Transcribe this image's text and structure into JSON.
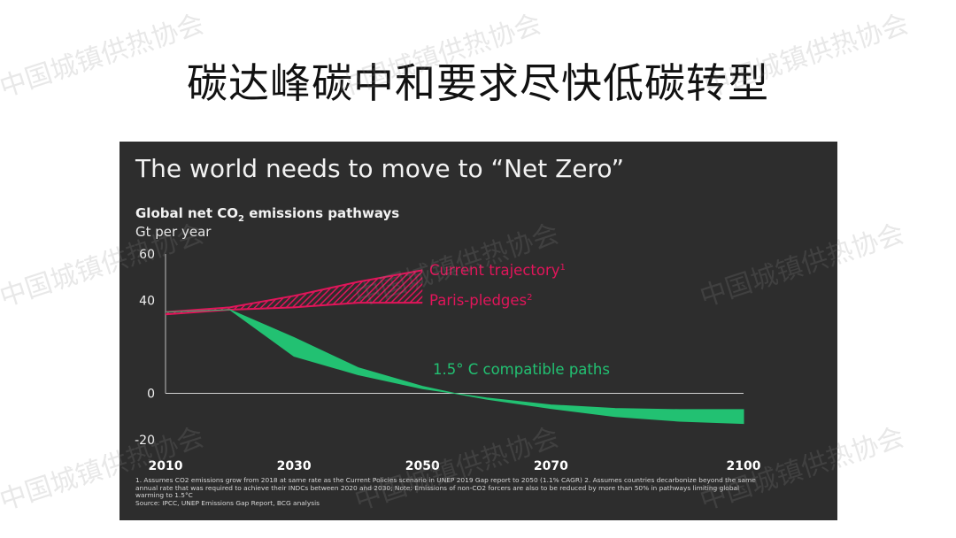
{
  "slide_title": "碳达峰碳中和要求尽快低碳转型",
  "panel": {
    "heading": "The world needs to move to “Net Zero”",
    "chart_title_before": "Global net CO",
    "chart_title_sub": "2",
    "chart_title_after": " emissions pathways",
    "chart_unit": "Gt per year",
    "footnote_lines": [
      "1. Assumes CO2 emissions grow from 2018 at same rate as the Current Policies scenario in UNEP 2019 Gap report to 2050 (1.1% CAGR) 2. Assumes countries decarbonize beyond  the same",
      "annual rate that was required to achieve their INDCs between 2020 and 2030; Note: Emissions of non-CO2 forcers are also to be reduced by more than 50% in pathways limiting global",
      "warming to 1.5°C",
      "Source: IPCC, UNEP Emissions Gap Report, BCG analysis"
    ]
  },
  "watermark_text": "中国城镇供热协会",
  "colors": {
    "current": "#e0155a",
    "compatible": "#22c172",
    "panel_bg": "#2d2d2d",
    "text": "#f2f2f2"
  },
  "chart_data": {
    "type": "area",
    "title": "Global net CO2 emissions pathways",
    "ylabel": "Gt per year",
    "xlim": [
      2010,
      2100
    ],
    "ylim": [
      -20,
      60
    ],
    "x_ticks": [
      "2010",
      "2030",
      "2050",
      "2070",
      "2100"
    ],
    "y_ticks": [
      "60",
      "40",
      "0",
      "-20"
    ],
    "series": [
      {
        "name": "Current trajectory",
        "superscript": "1",
        "bound": "upper",
        "x": [
          2010,
          2020,
          2030,
          2040,
          2050
        ],
        "y": [
          35,
          37,
          42,
          48,
          53
        ]
      },
      {
        "name": "Paris-pledges",
        "superscript": "2",
        "bound": "lower",
        "x": [
          2010,
          2020,
          2030,
          2040,
          2050
        ],
        "y": [
          34,
          36,
          37,
          39,
          39
        ]
      },
      {
        "name": "1.5° C compatible paths",
        "bound": "band",
        "x": [
          2010,
          2020,
          2030,
          2040,
          2050,
          2055,
          2060,
          2070,
          2080,
          2090,
          2100
        ],
        "upper": [
          35,
          36,
          24,
          11,
          3,
          0,
          -2,
          -5,
          -6.5,
          -7,
          -7
        ],
        "lower": [
          35,
          36,
          16,
          8,
          2,
          0,
          -2.5,
          -6.5,
          -10,
          -12,
          -13
        ]
      }
    ]
  }
}
